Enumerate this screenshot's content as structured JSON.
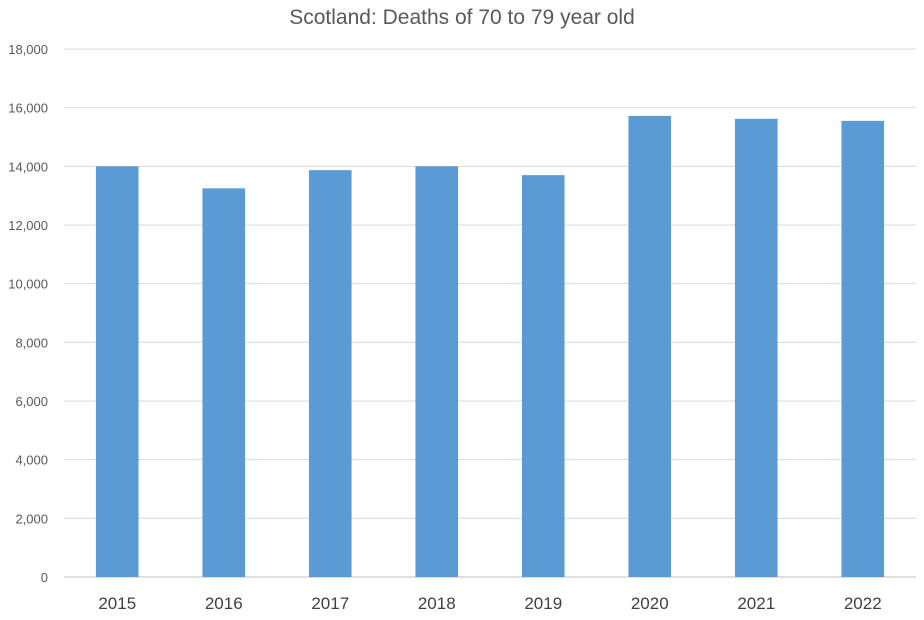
{
  "chart_data": {
    "type": "bar",
    "title": "Scotland: Deaths of 70 to 79 year old",
    "xlabel": "",
    "ylabel": "",
    "categories": [
      "2015",
      "2016",
      "2017",
      "2018",
      "2019",
      "2020",
      "2021",
      "2022"
    ],
    "values": [
      14000,
      13250,
      13870,
      14000,
      13700,
      15720,
      15620,
      15550
    ],
    "ylim": [
      0,
      18000
    ],
    "yticks": [
      0,
      2000,
      4000,
      6000,
      8000,
      10000,
      12000,
      14000,
      16000,
      18000
    ],
    "ytick_labels": [
      "0",
      "2,000",
      "4,000",
      "6,000",
      "8,000",
      "10,000",
      "12,000",
      "14,000",
      "16,000",
      "18,000"
    ],
    "grid": true,
    "legend": "none",
    "colors": {
      "bar": "#5b9bd5",
      "grid": "#d9d9d9",
      "text": "#595959"
    }
  }
}
